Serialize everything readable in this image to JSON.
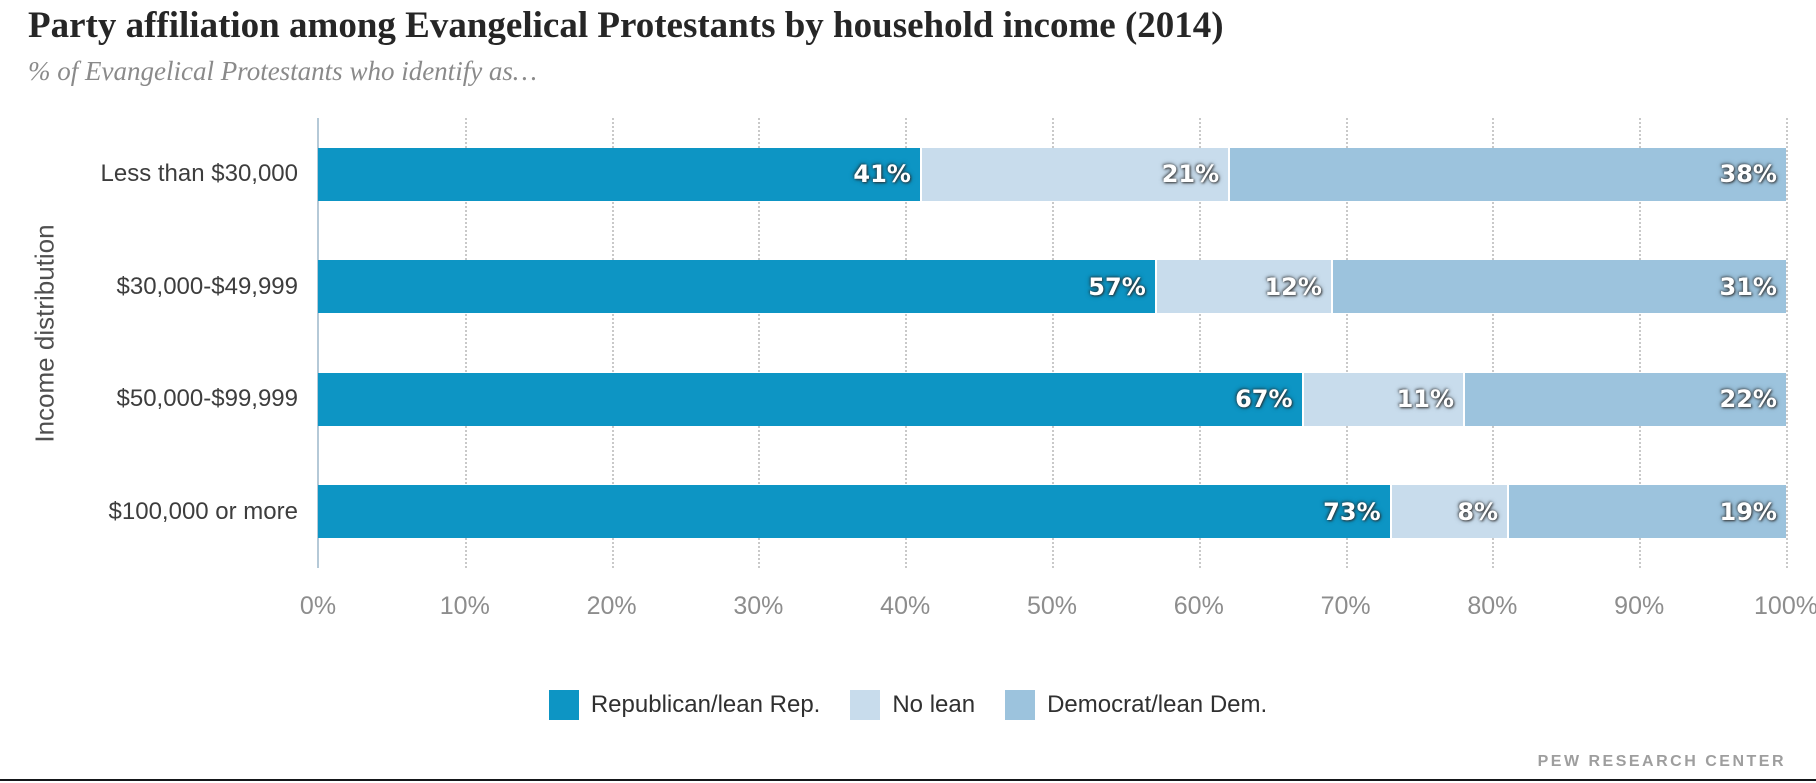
{
  "header": {
    "title": "Party affiliation among Evangelical Protestants by household income (2014)",
    "subtitle": "% of Evangelical Protestants who identify as…"
  },
  "chart_data": {
    "type": "bar",
    "orientation": "horizontal",
    "stacked": true,
    "title": "Party affiliation among Evangelical Protestants by household income (2014)",
    "subtitle": "% of Evangelical Protestants who identify as…",
    "ylabel": "Income distribution",
    "xlabel": "",
    "categories": [
      "Less than $30,000",
      "$30,000-$49,999",
      "$50,000-$99,999",
      "$100,000 or more"
    ],
    "series": [
      {
        "name": "Republican/lean Rep.",
        "color": "#0d95c4",
        "values": [
          41,
          57,
          67,
          73
        ]
      },
      {
        "name": "No lean",
        "color": "#c8dcec",
        "values": [
          21,
          12,
          11,
          8
        ]
      },
      {
        "name": "Democrat/lean Dem.",
        "color": "#9cc3dd",
        "values": [
          38,
          31,
          22,
          19
        ]
      }
    ],
    "xlim": [
      0,
      100
    ],
    "x_tick_labels": [
      "0%",
      "10%",
      "20%",
      "30%",
      "40%",
      "50%",
      "60%",
      "70%",
      "80%",
      "90%",
      "100%"
    ],
    "value_suffix": "%",
    "grid": "vertical-dotted",
    "legend_position": "bottom",
    "axis_color": "#b5c9d7",
    "gridline_color": "#c9c9c9"
  },
  "footer": {
    "source_label": "PEW RESEARCH CENTER"
  }
}
